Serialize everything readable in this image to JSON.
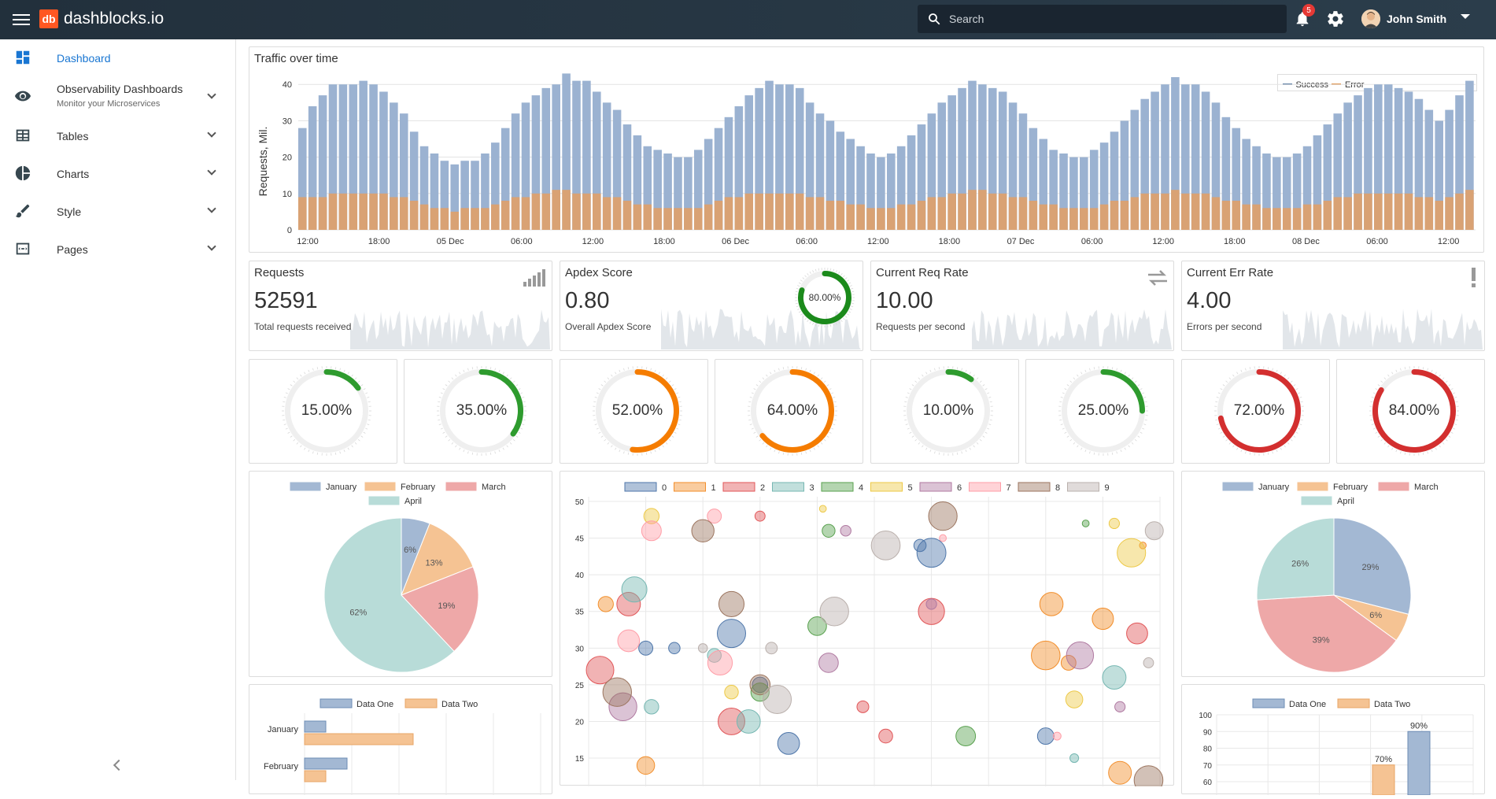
{
  "app": {
    "logo_mark": "db",
    "name": "dashblocks.io"
  },
  "search": {
    "placeholder": "Search"
  },
  "notifications": {
    "count": "5"
  },
  "user": {
    "name": "John Smith"
  },
  "sidebar": {
    "items": [
      {
        "label": "Dashboard",
        "icon": "dashboard-icon"
      },
      {
        "label": "Observability Dashboards",
        "sub": "Monitor your Microservices",
        "icon": "eye-icon"
      },
      {
        "label": "Tables",
        "icon": "table-icon"
      },
      {
        "label": "Charts",
        "icon": "pie-chart-icon"
      },
      {
        "label": "Style",
        "icon": "brush-icon"
      },
      {
        "label": "Pages",
        "icon": "pages-icon"
      }
    ]
  },
  "colors": {
    "accent": "#1976d2",
    "success": "#2e7d32",
    "warning": "#f57c00",
    "error": "#d32f2f",
    "blue": "#8fa9cb",
    "orange": "#d49a6a"
  },
  "traffic": {
    "title": "Traffic over time",
    "ylabel": "Requests, Mil.",
    "legend": [
      "Success",
      "Error"
    ],
    "yticks": [
      "0",
      "10",
      "20",
      "30",
      "40"
    ],
    "xticks": [
      "12:00",
      "18:00",
      "05 Dec",
      "06:00",
      "12:00",
      "18:00",
      "06 Dec",
      "06:00",
      "12:00",
      "18:00",
      "07 Dec",
      "06:00",
      "12:00",
      "18:00",
      "08 Dec",
      "06:00",
      "12:00"
    ]
  },
  "stats": [
    {
      "title": "Requests",
      "value": "52591",
      "sub": "Total requests received",
      "icon": "signal-icon"
    },
    {
      "title": "Apdex Score",
      "value": "0.80",
      "sub": "Overall Apdex Score",
      "gauge": "80.00%",
      "gauge_value": 0.8
    },
    {
      "title": "Current Req Rate",
      "value": "10.00",
      "sub": "Requests per second",
      "icon": "swap-icon"
    },
    {
      "title": "Current Err Rate",
      "value": "4.00",
      "sub": "Errors per second",
      "icon": "exclamation-icon"
    }
  ],
  "gauges": [
    {
      "label": "15.00%",
      "value": 0.15,
      "color": "#2e9b2e"
    },
    {
      "label": "35.00%",
      "value": 0.35,
      "color": "#2e9b2e"
    },
    {
      "label": "52.00%",
      "value": 0.52,
      "color": "#f57c00"
    },
    {
      "label": "64.00%",
      "value": 0.64,
      "color": "#f57c00"
    },
    {
      "label": "10.00%",
      "value": 0.1,
      "color": "#2e9b2e"
    },
    {
      "label": "25.00%",
      "value": 0.25,
      "color": "#2e9b2e"
    },
    {
      "label": "72.00%",
      "value": 0.72,
      "color": "#d32f2f"
    },
    {
      "label": "84.00%",
      "value": 0.84,
      "color": "#d32f2f"
    }
  ],
  "pie1": {
    "legend": [
      "January",
      "February",
      "March",
      "April"
    ],
    "slices": [
      6,
      13,
      19,
      62
    ],
    "labels": [
      "6%",
      "13%",
      "19%",
      "62%"
    ]
  },
  "pie2": {
    "legend": [
      "January",
      "February",
      "March",
      "April"
    ],
    "slices": [
      29,
      6,
      39,
      26
    ],
    "labels": [
      "29%",
      "6%",
      "39%",
      "26%"
    ]
  },
  "bubble": {
    "legend": [
      "0",
      "1",
      "2",
      "3",
      "4",
      "5",
      "6",
      "7",
      "8",
      "9"
    ],
    "yticks": [
      "15",
      "20",
      "25",
      "30",
      "35",
      "40",
      "45",
      "50"
    ]
  },
  "hbar": {
    "legend": [
      "Data One",
      "Data Two"
    ],
    "categories": [
      "January",
      "February"
    ]
  },
  "vbar": {
    "legend": [
      "Data One",
      "Data Two"
    ],
    "yticks": [
      "60",
      "70",
      "80",
      "90",
      "100"
    ],
    "labels": [
      "70%",
      "90%"
    ]
  },
  "chart_data": [
    {
      "type": "bar",
      "title": "Traffic over time",
      "ylabel": "Requests, Mil.",
      "ylim": [
        0,
        42
      ],
      "series": [
        {
          "name": "Success",
          "values": [
            28,
            34,
            37,
            40,
            40,
            40,
            41,
            40,
            38,
            35,
            32,
            27,
            23,
            21,
            19,
            18,
            19,
            19,
            21,
            24,
            28,
            32,
            35,
            37,
            39,
            40,
            43,
            41,
            41,
            38,
            35,
            33,
            29,
            26,
            23,
            22,
            21,
            20,
            20,
            22,
            25,
            28,
            31,
            34,
            37,
            39,
            41,
            40,
            40,
            39,
            35,
            32,
            30,
            27,
            25,
            23,
            21,
            20,
            21,
            23,
            26,
            29,
            32,
            35,
            37,
            39,
            41,
            40,
            39,
            38,
            35,
            32,
            28,
            25,
            22,
            21,
            20,
            20,
            22,
            24,
            27,
            30,
            33,
            36,
            38,
            40,
            42,
            40,
            40,
            38,
            35,
            31,
            28,
            25,
            23,
            21,
            20,
            20,
            21,
            23,
            26,
            29,
            32,
            35,
            37,
            39,
            40,
            40,
            39,
            38,
            36,
            33,
            30,
            33,
            37,
            41
          ]
        },
        {
          "name": "Error",
          "values": [
            9,
            9,
            9,
            10,
            10,
            10,
            10,
            10,
            10,
            9,
            9,
            8,
            7,
            6,
            6,
            5,
            6,
            6,
            6,
            7,
            8,
            9,
            9,
            10,
            10,
            11,
            11,
            10,
            10,
            10,
            9,
            9,
            8,
            7,
            7,
            6,
            6,
            6,
            6,
            6,
            7,
            8,
            9,
            9,
            10,
            10,
            10,
            10,
            10,
            10,
            9,
            9,
            8,
            8,
            7,
            7,
            6,
            6,
            6,
            7,
            7,
            8,
            9,
            9,
            10,
            10,
            11,
            11,
            10,
            10,
            9,
            9,
            8,
            7,
            7,
            6,
            6,
            6,
            6,
            7,
            8,
            8,
            9,
            10,
            10,
            10,
            11,
            10,
            10,
            10,
            9,
            8,
            8,
            7,
            7,
            6,
            6,
            6,
            6,
            7,
            7,
            8,
            9,
            9,
            10,
            10,
            10,
            10,
            10,
            10,
            9,
            9,
            8,
            9,
            10,
            11
          ]
        }
      ]
    },
    {
      "type": "pie",
      "categories": [
        "January",
        "February",
        "March",
        "April"
      ],
      "values": [
        6,
        13,
        19,
        62
      ]
    },
    {
      "type": "pie",
      "categories": [
        "January",
        "February",
        "March",
        "April"
      ],
      "values": [
        29,
        6,
        39,
        26
      ]
    },
    {
      "type": "scatter",
      "ylim": [
        12,
        50
      ],
      "series": [
        {
          "name": "0",
          "points": [
            [
              10,
              30
            ],
            [
              15,
              30
            ],
            [
              25,
              32
            ],
            [
              30,
              25
            ],
            [
              35,
              17
            ],
            [
              58,
              44
            ],
            [
              60,
              43
            ],
            [
              80,
              18
            ]
          ]
        },
        {
          "name": "1",
          "points": [
            [
              3,
              36
            ],
            [
              10,
              14
            ],
            [
              80,
              29
            ],
            [
              81,
              36
            ],
            [
              84,
              28
            ],
            [
              90,
              34
            ],
            [
              93,
              13
            ],
            [
              97,
              44
            ]
          ]
        },
        {
          "name": "2",
          "points": [
            [
              2,
              27
            ],
            [
              7,
              36
            ],
            [
              25,
              20
            ],
            [
              30,
              48
            ],
            [
              48,
              22
            ],
            [
              52,
              18
            ],
            [
              60,
              35
            ],
            [
              96,
              32
            ]
          ]
        },
        {
          "name": "3",
          "points": [
            [
              8,
              38
            ],
            [
              11,
              22
            ],
            [
              22,
              29
            ],
            [
              28,
              20
            ],
            [
              85,
              15
            ],
            [
              92,
              26
            ]
          ]
        },
        {
          "name": "4",
          "points": [
            [
              30,
              24
            ],
            [
              40,
              33
            ],
            [
              42,
              46
            ],
            [
              66,
              18
            ],
            [
              87,
              47
            ]
          ]
        },
        {
          "name": "5",
          "points": [
            [
              11,
              48
            ],
            [
              25,
              24
            ],
            [
              41,
              49
            ],
            [
              85,
              23
            ],
            [
              92,
              47
            ],
            [
              95,
              43
            ]
          ]
        },
        {
          "name": "6",
          "points": [
            [
              6,
              22
            ],
            [
              42,
              28
            ],
            [
              45,
              46
            ],
            [
              60,
              36
            ],
            [
              86,
              29
            ],
            [
              93,
              22
            ]
          ]
        },
        {
          "name": "7",
          "points": [
            [
              7,
              31
            ],
            [
              11,
              46
            ],
            [
              22,
              48
            ],
            [
              23,
              28
            ],
            [
              62,
              45
            ],
            [
              82,
              18
            ]
          ]
        },
        {
          "name": "8",
          "points": [
            [
              5,
              24
            ],
            [
              20,
              46
            ],
            [
              25,
              36
            ],
            [
              30,
              25
            ],
            [
              62,
              48
            ],
            [
              98,
              12
            ]
          ]
        },
        {
          "name": "9",
          "points": [
            [
              20,
              30
            ],
            [
              32,
              30
            ],
            [
              33,
              23
            ],
            [
              43,
              35
            ],
            [
              52,
              44
            ],
            [
              98,
              28
            ],
            [
              99,
              46
            ]
          ]
        }
      ]
    },
    {
      "type": "bar",
      "categories": [
        "January",
        "February"
      ],
      "series": [
        {
          "name": "Data One",
          "values": [
            9,
            18
          ]
        },
        {
          "name": "Data Two",
          "values": [
            46,
            9
          ]
        }
      ]
    },
    {
      "type": "bar",
      "series": [
        {
          "name": "Data One",
          "values": [
            90
          ]
        },
        {
          "name": "Data Two",
          "values": [
            70
          ]
        }
      ],
      "ylim": [
        60,
        100
      ]
    }
  ]
}
